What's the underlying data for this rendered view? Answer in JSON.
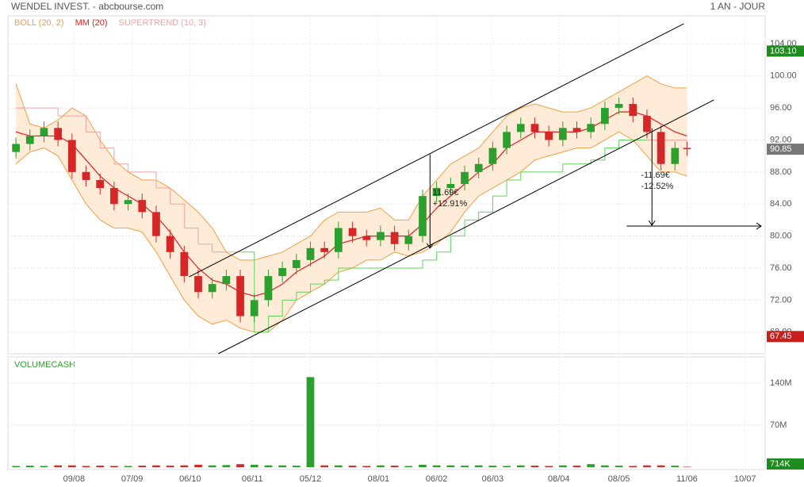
{
  "chart_data": {
    "type": "candlestick",
    "title": "WENDEL INVEST. - abcbourse.com",
    "period": "1 AN - JOUR",
    "indicators": [
      {
        "name": "BOLL (20, 2)",
        "color": "#f0a040"
      },
      {
        "name": "MM (20)",
        "color": "#e02020"
      },
      {
        "name": "SUPERTREND (10, 3)",
        "color": "#f4a0a0"
      }
    ],
    "xlim": [
      -33,
      345
    ],
    "xticks": [
      {
        "value": 0,
        "label": "09/08"
      },
      {
        "value": 29,
        "label": "07/09"
      },
      {
        "value": 58,
        "label": "06/10"
      },
      {
        "value": 89,
        "label": "06/11"
      },
      {
        "value": 118,
        "label": "05/12"
      },
      {
        "value": 152,
        "label": "08/01"
      },
      {
        "value": 181,
        "label": "06/02"
      },
      {
        "value": 209,
        "label": "06/03"
      },
      {
        "value": 242,
        "label": "08/04"
      },
      {
        "value": 272,
        "label": "08/05"
      },
      {
        "value": 306,
        "label": "11/06"
      },
      {
        "value": 335,
        "label": "10/07"
      }
    ],
    "ylim": [
      65.3,
      107.5
    ],
    "yticks": [
      {
        "value": 68,
        "label": "68.00"
      },
      {
        "value": 72,
        "label": "72.00"
      },
      {
        "value": 76,
        "label": "76.00"
      },
      {
        "value": 80,
        "label": "80.00"
      },
      {
        "value": 84,
        "label": "84.00"
      },
      {
        "value": 88,
        "label": "88.00"
      },
      {
        "value": 92,
        "label": "92.00"
      },
      {
        "value": 96,
        "label": "96.00"
      },
      {
        "value": 100,
        "label": "100.00"
      },
      {
        "value": 104,
        "label": "104.00"
      }
    ],
    "grid": true,
    "up_color": "#2ca02c",
    "down_color": "#d62728",
    "x": [
      -29,
      -22,
      -15,
      -8,
      -1,
      6,
      13,
      20,
      27,
      34,
      41,
      48,
      55,
      62,
      69,
      76,
      83,
      90,
      97,
      104,
      111,
      118,
      125,
      132,
      139,
      146,
      153,
      160,
      167,
      174,
      181,
      188,
      195,
      202,
      209,
      216,
      223,
      230,
      237,
      244,
      251,
      258,
      265,
      272,
      279,
      286,
      293,
      300,
      306
    ],
    "open": [
      90.5,
      91.5,
      92.5,
      93.5,
      92,
      88,
      87,
      86,
      84,
      84.5,
      83,
      80,
      78,
      75,
      73,
      74,
      75,
      70,
      72,
      75,
      76,
      77,
      78.5,
      78,
      81,
      80,
      79.5,
      80.5,
      79,
      80,
      85,
      86,
      86.5,
      88,
      89,
      91,
      93,
      94,
      93,
      92,
      93.5,
      93,
      94,
      96,
      96.5,
      95,
      93,
      89,
      91
    ],
    "high": [
      92.3,
      93.3,
      94.3,
      94.3,
      92.8,
      88.8,
      87.8,
      86.8,
      85.3,
      85.3,
      83.8,
      80.8,
      78.8,
      75.8,
      74.8,
      75.8,
      75.8,
      72.8,
      75.8,
      76.8,
      77.8,
      79.3,
      79.3,
      81.8,
      81.8,
      80.8,
      81.3,
      81.3,
      80.8,
      85.8,
      86.8,
      87.3,
      88.8,
      89.8,
      91.8,
      93.8,
      94.8,
      94.8,
      93.8,
      94.3,
      94.3,
      94.8,
      96.8,
      97.3,
      97.3,
      95.8,
      93.8,
      91.8,
      91.8
    ],
    "low": [
      89.7,
      90.7,
      91.7,
      91.2,
      87.2,
      86.2,
      85.2,
      83.2,
      83.2,
      82.2,
      79.2,
      77.2,
      74.2,
      72.2,
      72.2,
      73.2,
      69.2,
      69.2,
      71.2,
      74.2,
      75.2,
      76.2,
      77.2,
      77.2,
      79.2,
      78.7,
      78.7,
      78.2,
      78.2,
      79.2,
      84.2,
      85.2,
      85.7,
      87.2,
      88.2,
      90.2,
      92.2,
      92.2,
      91.2,
      91.2,
      92.2,
      92.2,
      93.2,
      95.2,
      94.2,
      92.2,
      88.2,
      88.2,
      90.0
    ],
    "close": [
      91.5,
      92.5,
      93.5,
      92,
      88,
      87,
      86,
      84,
      84.5,
      83,
      80,
      78,
      75,
      73,
      74,
      75,
      70,
      72,
      75,
      76,
      77,
      78.5,
      78,
      81,
      80,
      79.5,
      80.5,
      79,
      80,
      85,
      86,
      86.5,
      88,
      89,
      91,
      93,
      94,
      93,
      92,
      93.5,
      93,
      94,
      96,
      96.5,
      95,
      93,
      89,
      91,
      90.85
    ],
    "boll_upper": [
      99,
      94,
      93.5,
      94.5,
      96,
      95,
      92,
      89.5,
      88,
      87,
      87,
      86,
      84.5,
      83,
      81,
      78,
      77,
      77,
      77.5,
      78,
      79,
      80,
      82,
      83,
      83,
      83,
      83.5,
      82,
      82,
      85,
      87,
      89,
      90,
      91,
      93,
      95,
      96,
      96.5,
      96,
      95.5,
      95.5,
      96,
      97,
      98,
      99,
      100,
      99,
      98.5,
      98.5
    ],
    "boll_lower": [
      89,
      90.5,
      91,
      90,
      87,
      84,
      82,
      81,
      81,
      80.5,
      78,
      75,
      72,
      70,
      69,
      69.5,
      68.5,
      68,
      68,
      69.5,
      72,
      73,
      74,
      75.5,
      76,
      77,
      77,
      78,
      77.5,
      78,
      79,
      80.5,
      83,
      85,
      86,
      87,
      88,
      89.5,
      90,
      90.5,
      91,
      91,
      92,
      93,
      92,
      90,
      88,
      88,
      87.5
    ],
    "mm": [
      93,
      92.5,
      92.5,
      92.5,
      91.5,
      89.5,
      87.5,
      86,
      85,
      84,
      82.5,
      80.5,
      78,
      76,
      74.5,
      74,
      73,
      72.5,
      73,
      74,
      75.5,
      76.5,
      77.5,
      79,
      79.5,
      80,
      80,
      80,
      80,
      81.5,
      83.5,
      85,
      86.5,
      88,
      89,
      91,
      92,
      93,
      93,
      93,
      93,
      93.5,
      94.5,
      95.5,
      95.5,
      95,
      94,
      93,
      92.5
    ],
    "supertrend": [
      96,
      96,
      96,
      95,
      95,
      93,
      91,
      89,
      88,
      88,
      86,
      84,
      81,
      79,
      78,
      78,
      78,
      68,
      70,
      72,
      73,
      74,
      74.5,
      76,
      76,
      76,
      76,
      76,
      76,
      77,
      78,
      80,
      82,
      83,
      85,
      87,
      88,
      88,
      88,
      89,
      89,
      89.5,
      91,
      92,
      92,
      92,
      92,
      92,
      92
    ],
    "price_labels": [
      {
        "value": 103.1,
        "label": "103.10",
        "color": "#1e8c1e"
      },
      {
        "value": 90.85,
        "label": "90.85",
        "color": "#777777"
      },
      {
        "value": 67.45,
        "label": "67.45",
        "color": "#c81e1e"
      }
    ],
    "trendlines": [
      [
        57.4,
        74.9,
        304.3,
        106.5
      ],
      [
        72,
        65.3,
        319.4,
        97.0
      ]
    ],
    "arrows": [
      [
        177.7,
        90.2,
        177.7,
        78.5
      ],
      [
        288.5,
        93.45,
        288.5,
        81.35
      ],
      [
        275.8,
        81.25,
        343,
        81.25
      ]
    ],
    "annotations": [
      {
        "x": 179,
        "y": 85.4,
        "lines": [
          "11.69€",
          "+12.91%"
        ]
      },
      {
        "x": 283,
        "y": 87.6,
        "lines": [
          "-11.69€",
          "-12.52%"
        ]
      }
    ],
    "volume": {
      "title": "VOLUMECASH",
      "ylim": [
        0,
        183.6
      ],
      "yticks": [
        {
          "value": 70,
          "label": "70M"
        },
        {
          "value": 140,
          "label": "140M"
        }
      ],
      "values": [
        2,
        2.5,
        2,
        3,
        3,
        2,
        2.5,
        2,
        2,
        2.5,
        3,
        2.5,
        3,
        4,
        3,
        3.5,
        5,
        4,
        3,
        3,
        2.5,
        150,
        3,
        3,
        2.5,
        2,
        3,
        2.5,
        2,
        4,
        3,
        3,
        2.5,
        3,
        2.5,
        2,
        3,
        2.5,
        2,
        3,
        2.5,
        5,
        3,
        2.5,
        2,
        3,
        3,
        2.5,
        0.714
      ],
      "last_label": {
        "value": 0.714,
        "label": "714K",
        "color": "#1e8c1e"
      }
    }
  }
}
